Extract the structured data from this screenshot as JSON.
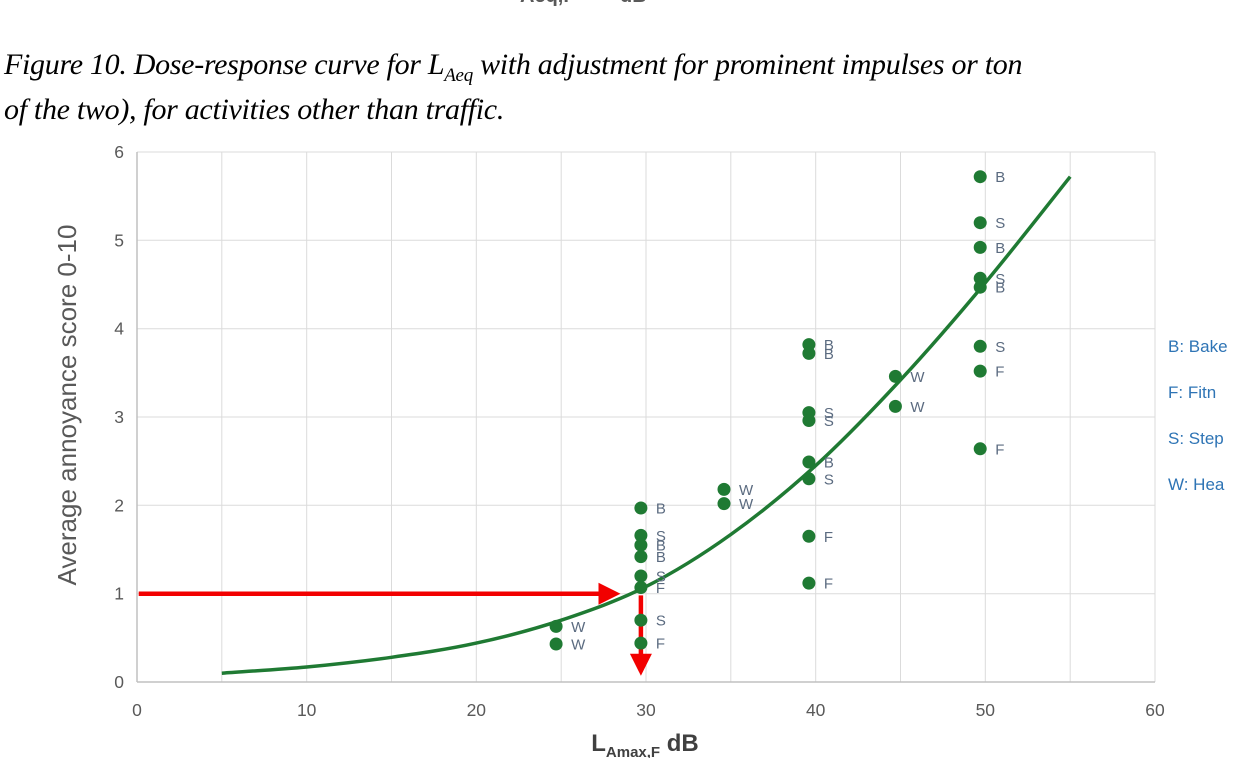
{
  "page": {
    "top_fragment_left": "Aeq,F",
    "top_fragment_right": "dB"
  },
  "caption": {
    "line1_pre": "Figure 10. Dose-response curve for L",
    "line1_sub": "Aeq",
    "line1_post": " with adjustment for prominent impulses or ton",
    "line2": "of the two), for activities other than traffic."
  },
  "legend": {
    "color": "#2E74B5",
    "items": [
      {
        "label": "B: Bake"
      },
      {
        "label": "F: Fitn"
      },
      {
        "label": "S: Step"
      },
      {
        "label": "W: Hea"
      }
    ]
  },
  "chart_data": {
    "type": "scatter",
    "title": "",
    "xlabel_main": "L",
    "xlabel_sub": "Amax,F",
    "xlabel_unit": " dB",
    "ylabel": "Average annoyance score 0-10",
    "xlim": [
      0,
      60
    ],
    "ylim": [
      0,
      6
    ],
    "x_ticks": [
      0,
      10,
      20,
      30,
      40,
      50,
      60
    ],
    "y_ticks": [
      0,
      1,
      2,
      3,
      4,
      5,
      6
    ],
    "x_grid_step": 5,
    "y_grid_step": 1,
    "grid": "on",
    "legend_position": "right-outside",
    "points": [
      {
        "x": 24.7,
        "y": 0.63,
        "label": "W"
      },
      {
        "x": 24.7,
        "y": 0.43,
        "label": "W"
      },
      {
        "x": 29.7,
        "y": 1.97,
        "label": "B"
      },
      {
        "x": 29.7,
        "y": 1.66,
        "label": "S"
      },
      {
        "x": 29.7,
        "y": 1.55,
        "label": "B"
      },
      {
        "x": 29.7,
        "y": 1.42,
        "label": "B"
      },
      {
        "x": 29.7,
        "y": 1.2,
        "label": "S"
      },
      {
        "x": 29.7,
        "y": 1.07,
        "label": "F"
      },
      {
        "x": 29.7,
        "y": 0.7,
        "label": "S"
      },
      {
        "x": 29.7,
        "y": 0.44,
        "label": "F"
      },
      {
        "x": 34.6,
        "y": 2.18,
        "label": "W"
      },
      {
        "x": 34.6,
        "y": 2.02,
        "label": "W"
      },
      {
        "x": 39.6,
        "y": 3.82,
        "label": "B"
      },
      {
        "x": 39.6,
        "y": 3.72,
        "label": "B"
      },
      {
        "x": 39.6,
        "y": 3.05,
        "label": "S"
      },
      {
        "x": 39.6,
        "y": 2.96,
        "label": "S"
      },
      {
        "x": 39.6,
        "y": 2.49,
        "label": "B"
      },
      {
        "x": 39.6,
        "y": 2.3,
        "label": "S"
      },
      {
        "x": 39.6,
        "y": 1.65,
        "label": "F"
      },
      {
        "x": 39.6,
        "y": 1.12,
        "label": "F"
      },
      {
        "x": 44.7,
        "y": 3.46,
        "label": "W"
      },
      {
        "x": 44.7,
        "y": 3.12,
        "label": "W"
      },
      {
        "x": 49.7,
        "y": 5.72,
        "label": "B"
      },
      {
        "x": 49.7,
        "y": 5.2,
        "label": "S"
      },
      {
        "x": 49.7,
        "y": 4.92,
        "label": "B"
      },
      {
        "x": 49.7,
        "y": 4.57,
        "label": "S"
      },
      {
        "x": 49.7,
        "y": 4.47,
        "label": "B"
      },
      {
        "x": 49.7,
        "y": 3.8,
        "label": "S"
      },
      {
        "x": 49.7,
        "y": 3.52,
        "label": "F"
      },
      {
        "x": 49.7,
        "y": 2.64,
        "label": "F"
      }
    ],
    "curve": {
      "name": "fitted dose-response curve",
      "points": [
        [
          5,
          0.1
        ],
        [
          10,
          0.17
        ],
        [
          15,
          0.28
        ],
        [
          20,
          0.44
        ],
        [
          25,
          0.7
        ],
        [
          30,
          1.08
        ],
        [
          35,
          1.67
        ],
        [
          40,
          2.45
        ],
        [
          45,
          3.42
        ],
        [
          50,
          4.52
        ],
        [
          55,
          5.72
        ]
      ]
    },
    "annotations": {
      "horizontal_arrow": {
        "y": 1,
        "from_x": 0.1,
        "tip_x": 28.5
      },
      "vertical_arrow": {
        "x": 29.7,
        "from_y": 0.98,
        "tip_y": 0.07
      }
    },
    "colors": {
      "point": "#1F7A33",
      "curve": "#1F7A33",
      "arrow": "#F20000",
      "grid": "#DBDBDB",
      "axis": "#C0C0C0",
      "tick_label": "#595959",
      "point_label": "#5B6B80",
      "axis_title": "#595959",
      "x_title": "#404040"
    }
  }
}
